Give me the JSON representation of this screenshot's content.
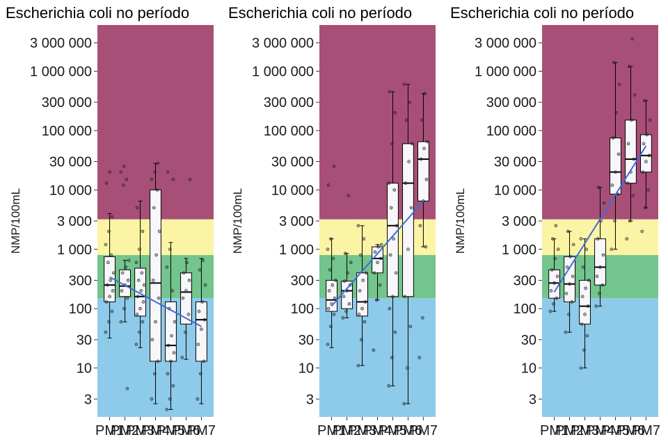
{
  "chart_data": [
    {
      "type": "box",
      "title": "Escherichia coli no período",
      "ylabel": "NMP/100mL",
      "xlabel": "",
      "y_scale": "log10",
      "ylim": [
        1.5,
        6000000
      ],
      "y_ticks": [
        3,
        10,
        30,
        100,
        300,
        1000,
        3000,
        10000,
        30000,
        100000,
        300000,
        1000000,
        3000000
      ],
      "y_tick_labels": [
        "3",
        "10",
        "30",
        "100",
        "300",
        "1 000",
        "3 000",
        "10 000",
        "30 000",
        "100 000",
        "300 000",
        "1 000 000",
        "3 000 000"
      ],
      "categories": [
        "PM1",
        "PM2",
        "PM3",
        "PM4",
        "PM5",
        "PM6",
        "PM7"
      ],
      "bands": [
        {
          "from": 1.5,
          "to": 150,
          "color": "#8ecae9"
        },
        {
          "from": 150,
          "to": 800,
          "color": "#73c48d"
        },
        {
          "from": 800,
          "to": 3200,
          "color": "#fbf4a5"
        },
        {
          "from": 3200,
          "to": 6000000,
          "color": "#a84f78"
        }
      ],
      "boxes": [
        {
          "q1": 130,
          "median": 250,
          "q3": 750,
          "whisker_low": 32,
          "whisker_high": 4000
        },
        {
          "q1": 160,
          "median": 240,
          "q3": 450,
          "whisker_low": 60,
          "whisker_high": 650
        },
        {
          "q1": 75,
          "median": 160,
          "q3": 480,
          "whisker_low": 22,
          "whisker_high": 6500
        },
        {
          "q1": 13,
          "median": 270,
          "q3": 10000,
          "whisker_low": 2.5,
          "whisker_high": 28000
        },
        {
          "q1": 13,
          "median": 24,
          "q3": 130,
          "whisker_low": 2,
          "whisker_high": 1300
        },
        {
          "q1": 55,
          "median": 190,
          "q3": 400,
          "whisker_low": 14,
          "whisker_high": 700
        },
        {
          "q1": 13,
          "median": 65,
          "q3": 130,
          "whisker_low": 2.5,
          "whisker_high": 700
        }
      ],
      "points": [
        [
          40,
          60,
          90,
          130,
          160,
          200,
          250,
          300,
          400,
          600,
          800,
          1200,
          2000,
          3500,
          13000,
          20000
        ],
        [
          60,
          100,
          150,
          200,
          250,
          300,
          400,
          500,
          650,
          12000,
          15000,
          20000,
          25000,
          4.5
        ],
        [
          25,
          40,
          60,
          80,
          100,
          130,
          160,
          200,
          250,
          300,
          400,
          600,
          1000,
          2000,
          5000
        ],
        [
          3,
          8,
          13,
          30,
          60,
          150,
          300,
          800,
          2000,
          5000,
          10000,
          15000,
          20000,
          28000
        ],
        [
          2,
          3,
          5,
          8,
          13,
          18,
          24,
          35,
          60,
          100,
          200,
          500,
          1000,
          15000,
          20000
        ],
        [
          15,
          40,
          80,
          150,
          200,
          300,
          400,
          600,
          15000
        ],
        [
          3,
          8,
          13,
          25,
          45,
          65,
          90,
          130,
          250,
          450,
          650
        ]
      ],
      "trend": [
        [
          1,
          340
        ],
        [
          7,
          50
        ]
      ],
      "trend_color": "#3d6bd8"
    },
    {
      "type": "box",
      "title": "Escherichia coli no período",
      "ylabel": "NMP/100mL",
      "xlabel": "",
      "y_scale": "log10",
      "ylim": [
        1.5,
        6000000
      ],
      "y_ticks": [
        3,
        10,
        30,
        100,
        300,
        1000,
        3000,
        10000,
        30000,
        100000,
        300000,
        1000000,
        3000000
      ],
      "y_tick_labels": [
        "3",
        "10",
        "30",
        "100",
        "300",
        "1 000",
        "3 000",
        "10 000",
        "30 000",
        "100 000",
        "300 000",
        "1 000 000",
        "3 000 000"
      ],
      "categories": [
        "PM1",
        "PM2",
        "PM3",
        "PM4",
        "PM5",
        "PM6",
        "PM7"
      ],
      "bands": [
        {
          "from": 1.5,
          "to": 150,
          "color": "#8ecae9"
        },
        {
          "from": 150,
          "to": 800,
          "color": "#73c48d"
        },
        {
          "from": 800,
          "to": 3200,
          "color": "#fbf4a5"
        },
        {
          "from": 3200,
          "to": 6000000,
          "color": "#a84f78"
        }
      ],
      "boxes": [
        {
          "q1": 90,
          "median": 140,
          "q3": 300,
          "whisker_low": 22,
          "whisker_high": 1500
        },
        {
          "q1": 100,
          "median": 200,
          "q3": 290,
          "whisker_low": 70,
          "whisker_high": 850
        },
        {
          "q1": 75,
          "median": 130,
          "q3": 400,
          "whisker_low": 11,
          "whisker_high": 2500
        },
        {
          "q1": 400,
          "median": 700,
          "q3": 1100,
          "whisker_low": 140,
          "whisker_high": 1200
        },
        {
          "q1": 160,
          "median": 2500,
          "q3": 13000,
          "whisker_low": 5,
          "whisker_high": 450000
        },
        {
          "q1": 160,
          "median": 13000,
          "q3": 60000,
          "whisker_low": 2.5,
          "whisker_high": 600000
        },
        {
          "q1": 6500,
          "median": 33000,
          "q3": 65000,
          "whisker_low": 1100,
          "whisker_high": 420000
        }
      ],
      "points": [
        [
          25,
          50,
          80,
          100,
          120,
          150,
          200,
          250,
          300,
          450,
          700,
          1000,
          1500,
          25000,
          12000
        ],
        [
          70,
          90,
          120,
          160,
          200,
          250,
          290,
          400,
          600,
          850,
          8000
        ],
        [
          11,
          30,
          60,
          80,
          100,
          130,
          200,
          300,
          400,
          800,
          1500,
          2500
        ],
        [
          20,
          140,
          250,
          400,
          600,
          700,
          900,
          1100,
          1200
        ],
        [
          5,
          15,
          40,
          100,
          160,
          400,
          800,
          1500,
          2500,
          5000,
          10000,
          13000,
          60000,
          200000,
          450000
        ],
        [
          2.5,
          10,
          50,
          160,
          1000,
          5000,
          13000,
          30000,
          60000,
          150000,
          300000,
          600000
        ],
        [
          15,
          70,
          1100,
          2500,
          6500,
          15000,
          33000,
          50000,
          65000,
          150000,
          420000
        ]
      ],
      "trend": [
        [
          1,
          110
        ],
        [
          7,
          6500
        ]
      ],
      "trend_color": "#3d6bd8"
    },
    {
      "type": "box",
      "title": "Escherichia coli no período",
      "ylabel": "NMP/100mL",
      "xlabel": "",
      "y_scale": "log10",
      "ylim": [
        1.5,
        6000000
      ],
      "y_ticks": [
        3,
        10,
        30,
        100,
        300,
        1000,
        3000,
        10000,
        30000,
        100000,
        300000,
        1000000,
        3000000
      ],
      "y_tick_labels": [
        "3",
        "10",
        "30",
        "100",
        "300",
        "1 000",
        "3 000",
        "10 000",
        "30 000",
        "100 000",
        "300 000",
        "1 000 000",
        "3 000 000"
      ],
      "categories": [
        "PM1",
        "PM2",
        "PM3",
        "PM4",
        "PM5",
        "PM6",
        "PM7"
      ],
      "bands": [
        {
          "from": 1.5,
          "to": 150,
          "color": "#8ecae9"
        },
        {
          "from": 150,
          "to": 800,
          "color": "#73c48d"
        },
        {
          "from": 800,
          "to": 3200,
          "color": "#fbf4a5"
        },
        {
          "from": 3200,
          "to": 6000000,
          "color": "#a84f78"
        }
      ],
      "boxes": [
        {
          "q1": 150,
          "median": 270,
          "q3": 450,
          "whisker_low": 90,
          "whisker_high": 1500
        },
        {
          "q1": 130,
          "median": 260,
          "q3": 750,
          "whisker_low": 40,
          "whisker_high": 2000
        },
        {
          "q1": 55,
          "median": 110,
          "q3": 300,
          "whisker_low": 10,
          "whisker_high": 1500
        },
        {
          "q1": 250,
          "median": 500,
          "q3": 1500,
          "whisker_low": 110,
          "whisker_high": 11000
        },
        {
          "q1": 8500,
          "median": 20000,
          "q3": 75000,
          "whisker_low": 1000,
          "whisker_high": 1400000
        },
        {
          "q1": 13000,
          "median": 33000,
          "q3": 150000,
          "whisker_low": 3000,
          "whisker_high": 1200000
        },
        {
          "q1": 20000,
          "median": 38000,
          "q3": 85000,
          "whisker_low": 5000,
          "whisker_high": 320000
        }
      ],
      "points": [
        [
          90,
          120,
          150,
          200,
          270,
          350,
          450,
          700,
          1000,
          1500,
          2500
        ],
        [
          40,
          80,
          130,
          180,
          260,
          350,
          500,
          750,
          1200,
          2000
        ],
        [
          10,
          20,
          35,
          55,
          80,
          110,
          160,
          220,
          300,
          500,
          1000,
          1500
        ],
        [
          110,
          180,
          250,
          350,
          500,
          800,
          1500,
          3000,
          6000,
          11000
        ],
        [
          1000,
          3000,
          8500,
          12000,
          20000,
          40000,
          75000,
          200000,
          600000,
          1400000
        ],
        [
          1500,
          3000,
          8000,
          13000,
          20000,
          33000,
          60000,
          150000,
          400000,
          1200000,
          3500000
        ],
        [
          2000,
          5000,
          10000,
          20000,
          30000,
          38000,
          60000,
          85000,
          150000,
          320000
        ]
      ],
      "trend": [
        [
          1,
          190
        ],
        [
          7,
          55000
        ]
      ],
      "trend_color": "#3d6bd8"
    }
  ]
}
